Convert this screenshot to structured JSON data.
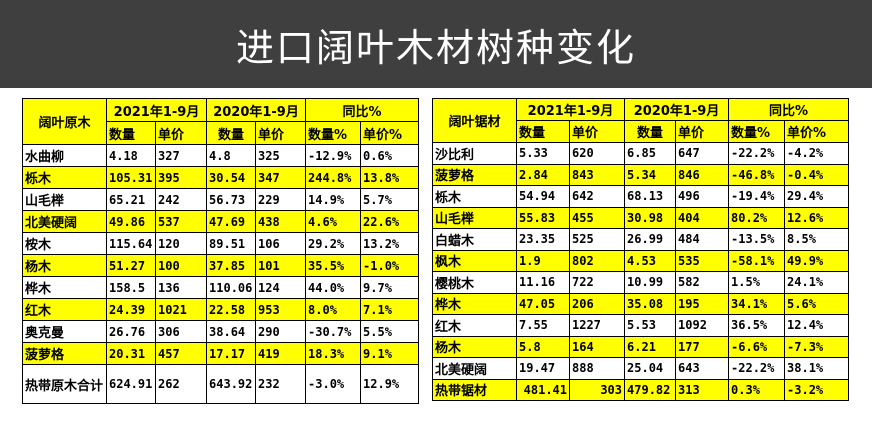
{
  "title": "进口阔叶木材树种变化",
  "colors": {
    "highlight": "#ffff00",
    "title_bg": "#3f3f3f"
  },
  "logs": {
    "header": {
      "category": "阔叶原木",
      "period1": "2021年1-9月",
      "period2": "2020年1-9月",
      "yoy": "同比%",
      "qty": "数量",
      "price": "单价",
      "qty_pct": "数量%",
      "price_pct": "单价%"
    },
    "rows": [
      [
        "水曲柳",
        "4.18",
        "327",
        "4.8",
        "325",
        "-12.9%",
        "0.6%"
      ],
      [
        "栎木",
        "105.31",
        "395",
        "30.54",
        "347",
        "244.8%",
        "13.8%"
      ],
      [
        "山毛榉",
        "65.21",
        "242",
        "56.73",
        "229",
        "14.9%",
        "5.7%"
      ],
      [
        "北美硬阔",
        "49.86",
        "537",
        "47.69",
        "438",
        "4.6%",
        "22.6%"
      ],
      [
        "桉木",
        "115.64",
        "120",
        "89.51",
        "106",
        "29.2%",
        "13.2%"
      ],
      [
        "杨木",
        "51.27",
        "100",
        "37.85",
        "101",
        "35.5%",
        "-1.0%"
      ],
      [
        "桦木",
        "158.5",
        "136",
        "110.06",
        "124",
        "44.0%",
        "9.7%"
      ],
      [
        "红木",
        "24.39",
        "1021",
        "22.58",
        "953",
        "8.0%",
        "7.1%"
      ],
      [
        "奥克曼",
        "26.76",
        "306",
        "38.64",
        "290",
        "-30.7%",
        "5.5%"
      ],
      [
        "菠萝格",
        "20.31",
        "457",
        "17.17",
        "419",
        "18.3%",
        "9.1%"
      ],
      [
        "热带原木合计",
        "624.91",
        "262",
        "643.92",
        "232",
        "-3.0%",
        "12.9%"
      ]
    ]
  },
  "lumber": {
    "header": {
      "category": "阔叶锯材",
      "period1": "2021年1-9月",
      "period2": "2020年1-9月",
      "yoy": "同比%",
      "qty": "数量",
      "price": "单价",
      "qty_pct": "数量%",
      "price_pct": "单价%"
    },
    "rows": [
      [
        "沙比利",
        "5.33",
        "620",
        "6.85",
        "647",
        "-22.2%",
        "-4.2%"
      ],
      [
        "菠萝格",
        "2.84",
        "843",
        "5.34",
        "846",
        "-46.8%",
        "-0.4%"
      ],
      [
        "栎木",
        "54.94",
        "642",
        "68.13",
        "496",
        "-19.4%",
        "29.4%"
      ],
      [
        "山毛榉",
        "55.83",
        "455",
        "30.98",
        "404",
        "80.2%",
        "12.6%"
      ],
      [
        "白蜡木",
        "23.35",
        "525",
        "26.99",
        "484",
        "-13.5%",
        "8.5%"
      ],
      [
        "枫木",
        "1.9",
        "802",
        "4.53",
        "535",
        "-58.1%",
        "49.9%"
      ],
      [
        "樱桃木",
        "11.16",
        "722",
        "10.99",
        "582",
        "1.5%",
        "24.1%"
      ],
      [
        "桦木",
        "47.05",
        "206",
        "35.08",
        "195",
        "34.1%",
        "5.6%"
      ],
      [
        "红木",
        "7.55",
        "1227",
        "5.53",
        "1092",
        "36.5%",
        "12.4%"
      ],
      [
        "杨木",
        "5.8",
        "164",
        "6.21",
        "177",
        "-6.6%",
        "-7.3%"
      ],
      [
        "北美硬阔",
        "19.47",
        "888",
        "25.04",
        "643",
        "-22.2%",
        "38.1%"
      ],
      [
        "热带锯材",
        "481.41",
        "303",
        "479.82",
        "313",
        "0.3%",
        "-3.2%"
      ]
    ]
  }
}
